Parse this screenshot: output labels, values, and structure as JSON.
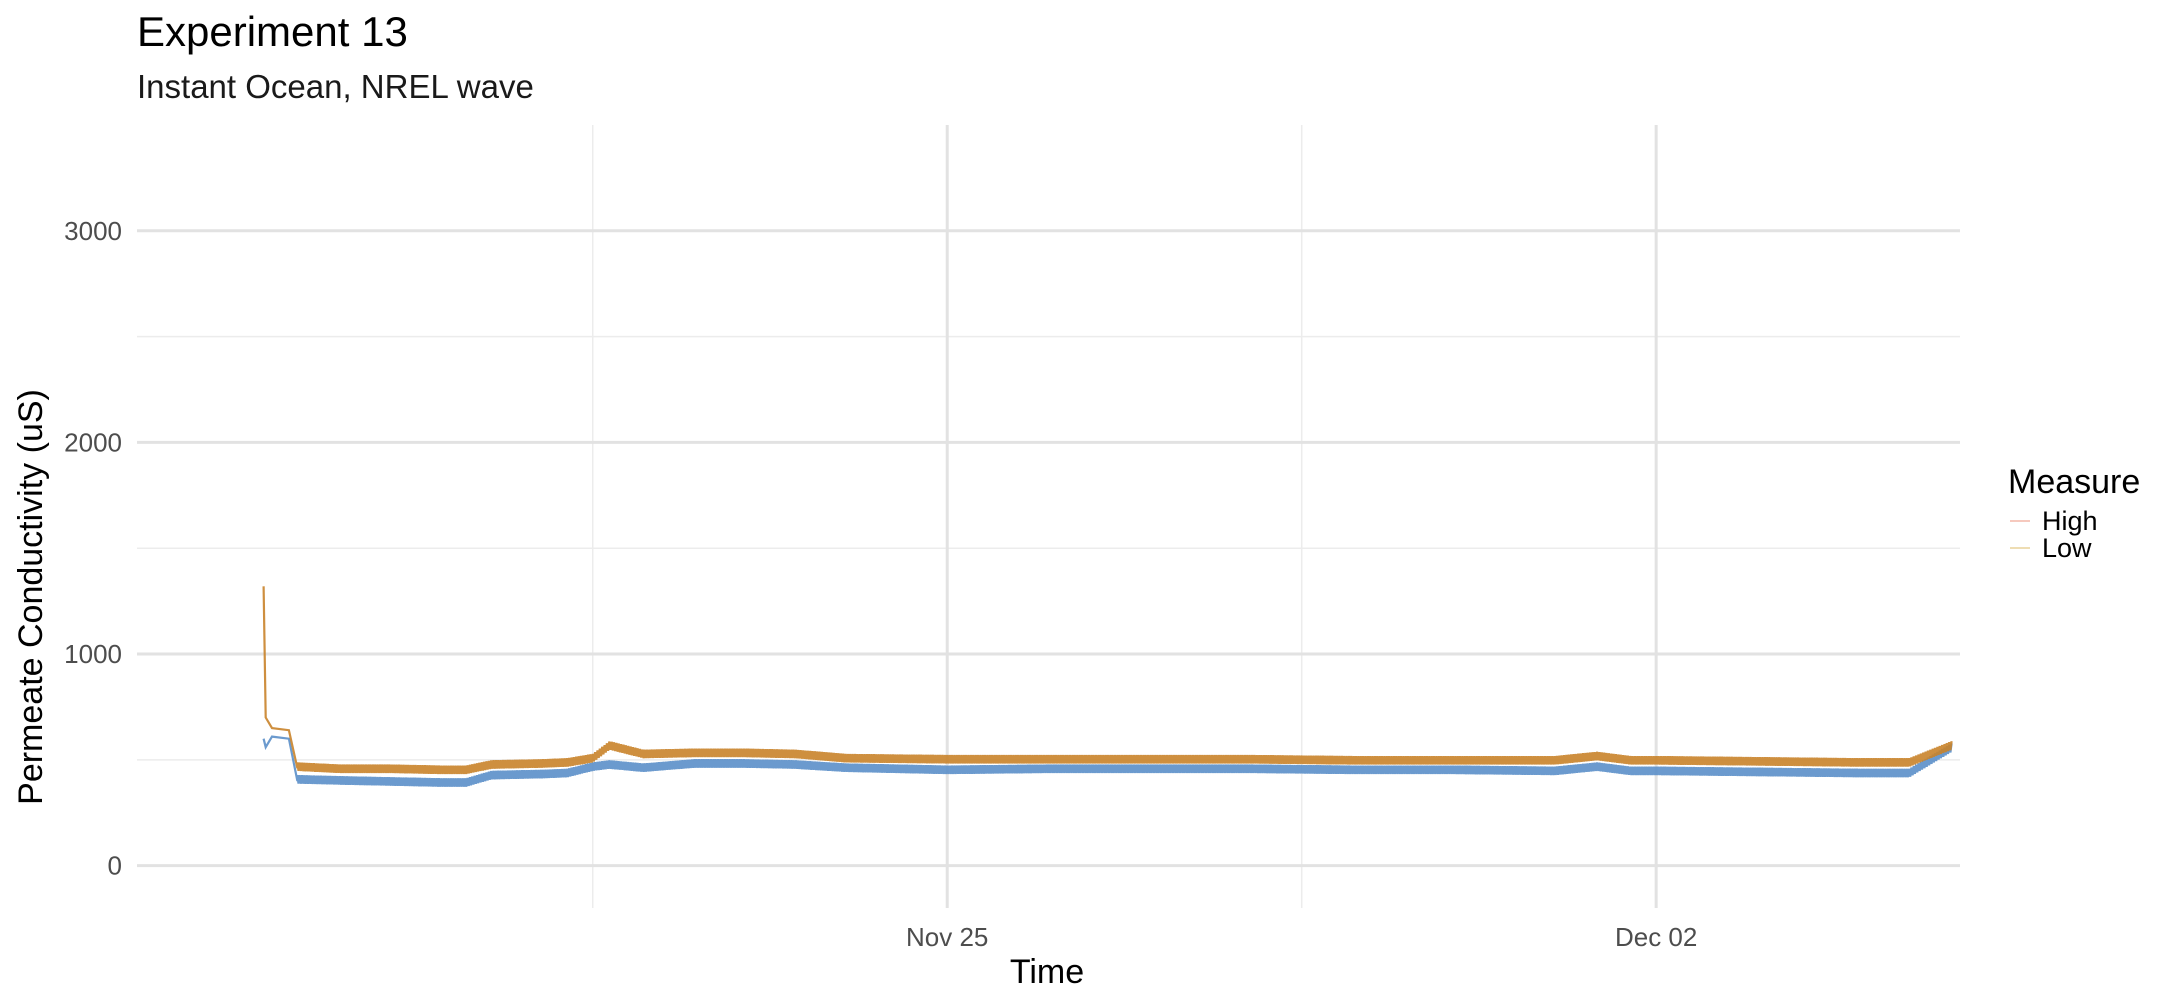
{
  "chart_data": {
    "type": "line",
    "title": "Experiment 13",
    "subtitle": "Instant Ocean, NREL wave",
    "xlabel": "Time",
    "ylabel": "Permeate Conductivity (uS)",
    "x_start": "2024-11-18T06:00",
    "x_end": "2024-12-04T22:00",
    "xlim": [
      "2024-11-17T00:00",
      "2024-12-05T00:00"
    ],
    "ylim": [
      -200,
      3500
    ],
    "y_ticks": [
      0,
      1000,
      2000,
      3000
    ],
    "x_ticks": [
      {
        "date": "2024-11-25",
        "label": "Nov 25"
      },
      {
        "date": "2024-12-02",
        "label": "Dec 02"
      }
    ],
    "x_minor_ticks": [
      "2024-11-21T12:00",
      "2024-11-28T12:00"
    ],
    "grid": true,
    "legend": {
      "title": "Measure",
      "position": "right",
      "entries": [
        {
          "name": "High",
          "color": "#f4b7a8"
        },
        {
          "name": "Low",
          "color": "#e8d29a"
        }
      ]
    },
    "series": [
      {
        "name": "High",
        "color": "#c9832a",
        "values": [
          [
            "2024-11-18T06:00",
            1320
          ],
          [
            "2024-11-18T06:30",
            700
          ],
          [
            "2024-11-18T08:00",
            650
          ],
          [
            "2024-11-18T12:00",
            640
          ],
          [
            "2024-11-18T14:00",
            460
          ],
          [
            "2024-11-19T00:00",
            450
          ],
          [
            "2024-11-19T12:00",
            450
          ],
          [
            "2024-11-20T00:00",
            445
          ],
          [
            "2024-11-20T06:00",
            445
          ],
          [
            "2024-11-20T12:00",
            470
          ],
          [
            "2024-11-21T00:00",
            475
          ],
          [
            "2024-11-21T06:00",
            480
          ],
          [
            "2024-11-21T12:00",
            500
          ],
          [
            "2024-11-21T16:00",
            560
          ],
          [
            "2024-11-22T00:00",
            520
          ],
          [
            "2024-11-22T12:00",
            525
          ],
          [
            "2024-11-23T00:00",
            525
          ],
          [
            "2024-11-23T12:00",
            520
          ],
          [
            "2024-11-24T00:00",
            500
          ],
          [
            "2024-11-25T00:00",
            495
          ],
          [
            "2024-11-26T00:00",
            495
          ],
          [
            "2024-11-27T00:00",
            495
          ],
          [
            "2024-11-28T00:00",
            495
          ],
          [
            "2024-11-29T00:00",
            490
          ],
          [
            "2024-11-30T00:00",
            490
          ],
          [
            "2024-12-01T00:00",
            490
          ],
          [
            "2024-12-01T10:00",
            510
          ],
          [
            "2024-12-01T18:00",
            490
          ],
          [
            "2024-12-02T00:00",
            490
          ],
          [
            "2024-12-03T00:00",
            485
          ],
          [
            "2024-12-04T00:00",
            480
          ],
          [
            "2024-12-04T12:00",
            480
          ],
          [
            "2024-12-04T22:00",
            560
          ]
        ]
      },
      {
        "name": "Low",
        "color": "#5b8fc9",
        "values": [
          [
            "2024-11-18T06:00",
            600
          ],
          [
            "2024-11-18T06:30",
            560
          ],
          [
            "2024-11-18T08:00",
            610
          ],
          [
            "2024-11-18T12:00",
            600
          ],
          [
            "2024-11-18T14:00",
            400
          ],
          [
            "2024-11-19T00:00",
            395
          ],
          [
            "2024-11-19T12:00",
            390
          ],
          [
            "2024-11-20T00:00",
            385
          ],
          [
            "2024-11-20T06:00",
            385
          ],
          [
            "2024-11-20T12:00",
            420
          ],
          [
            "2024-11-21T00:00",
            425
          ],
          [
            "2024-11-21T06:00",
            430
          ],
          [
            "2024-11-21T12:00",
            460
          ],
          [
            "2024-11-21T16:00",
            470
          ],
          [
            "2024-11-22T00:00",
            455
          ],
          [
            "2024-11-22T12:00",
            475
          ],
          [
            "2024-11-23T00:00",
            475
          ],
          [
            "2024-11-23T12:00",
            470
          ],
          [
            "2024-11-24T00:00",
            455
          ],
          [
            "2024-11-25T00:00",
            445
          ],
          [
            "2024-11-26T00:00",
            450
          ],
          [
            "2024-11-27T00:00",
            450
          ],
          [
            "2024-11-28T00:00",
            450
          ],
          [
            "2024-11-29T00:00",
            445
          ],
          [
            "2024-11-30T00:00",
            445
          ],
          [
            "2024-12-01T00:00",
            440
          ],
          [
            "2024-12-01T10:00",
            460
          ],
          [
            "2024-12-01T18:00",
            440
          ],
          [
            "2024-12-02T00:00",
            440
          ],
          [
            "2024-12-03T00:00",
            435
          ],
          [
            "2024-12-04T00:00",
            430
          ],
          [
            "2024-12-04T12:00",
            430
          ],
          [
            "2024-12-04T22:00",
            550
          ]
        ]
      }
    ]
  }
}
